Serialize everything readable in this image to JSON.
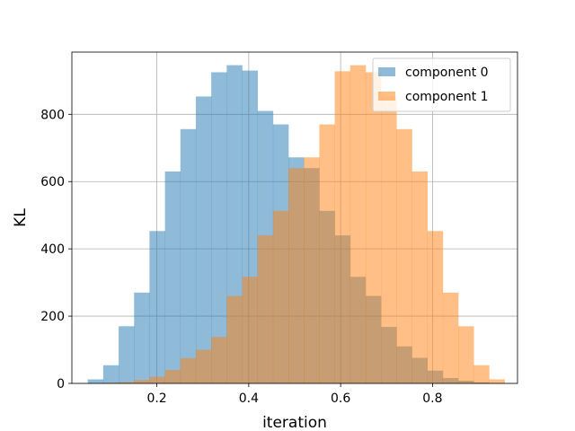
{
  "chart_data": {
    "type": "bar",
    "xlabel": "iteration",
    "ylabel": "KL",
    "xlim": [
      0.015,
      0.985
    ],
    "ylim": [
      0,
      985
    ],
    "xticks": [
      0.2,
      0.4,
      0.6,
      0.8
    ],
    "yticks": [
      0,
      200,
      400,
      600,
      800
    ],
    "xtick_labels": [
      "0.2",
      "0.4",
      "0.6",
      "0.8"
    ],
    "ytick_labels": [
      "0",
      "200",
      "400",
      "600",
      "800"
    ],
    "grid": true,
    "legend_position": "top-right",
    "series": [
      {
        "name": "component 0",
        "color": "#1f77b4",
        "alpha": 0.5,
        "bin_width": 0.0336,
        "bin_starts": [
          0.0496,
          0.0832,
          0.1168,
          0.1504,
          0.184,
          0.2176,
          0.2512,
          0.2848,
          0.3184,
          0.352,
          0.3856,
          0.4192,
          0.4528,
          0.4864,
          0.52,
          0.5536,
          0.5872,
          0.6208,
          0.6544,
          0.688,
          0.7216,
          0.7552,
          0.7888,
          0.8224,
          0.856,
          0.8896,
          0.9232
        ],
        "values": [
          12,
          54,
          170,
          270,
          453,
          630,
          756,
          853,
          925,
          946,
          930,
          810,
          770,
          672,
          640,
          513,
          440,
          317,
          260,
          168,
          110,
          76,
          38,
          16,
          8,
          3,
          1
        ]
      },
      {
        "name": "component 1",
        "color": "#ff7f0e",
        "alpha": 0.5,
        "bin_width": 0.0336,
        "bin_starts": [
          0.0496,
          0.0832,
          0.1168,
          0.1504,
          0.184,
          0.2176,
          0.2512,
          0.2848,
          0.3184,
          0.352,
          0.3856,
          0.4192,
          0.4528,
          0.4864,
          0.52,
          0.5536,
          0.5872,
          0.6208,
          0.6544,
          0.688,
          0.7216,
          0.7552,
          0.7888,
          0.8224,
          0.856,
          0.8896,
          0.9232
        ],
        "values": [
          1,
          2,
          4,
          10,
          20,
          40,
          75,
          100,
          138,
          260,
          317,
          440,
          513,
          640,
          672,
          770,
          928,
          946,
          925,
          853,
          756,
          630,
          453,
          270,
          170,
          54,
          12
        ]
      }
    ]
  }
}
